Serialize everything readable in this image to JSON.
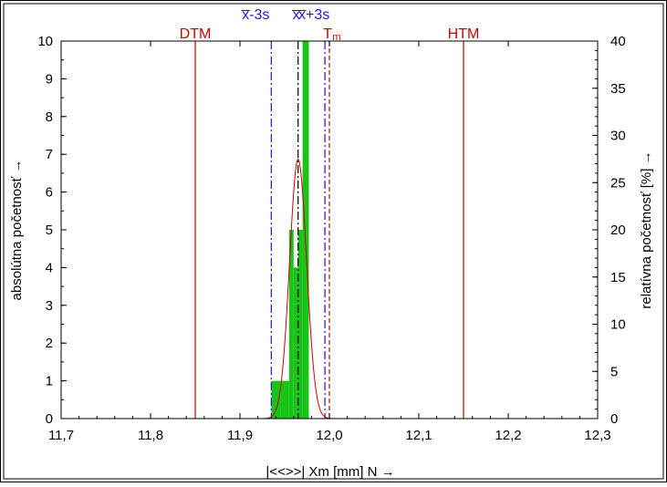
{
  "chart_data": {
    "type": "bar",
    "xlabel": "|<<>>|  Xm [mm]  N →",
    "ylabel_left": "absolútna početnosť →",
    "ylabel_right": "relatívna početnosť  [%] →",
    "xlim": [
      11.7,
      12.3
    ],
    "ylim_left": [
      0,
      10
    ],
    "ylim_right": [
      0,
      40
    ],
    "x_ticks": [
      "11,7",
      "11,8",
      "11,9",
      "12,0",
      "12,1",
      "12,2",
      "12,3"
    ],
    "x_tick_values": [
      11.7,
      11.8,
      11.9,
      12.0,
      12.1,
      12.2,
      12.3
    ],
    "y_left_ticks": [
      "0",
      "1",
      "2",
      "3",
      "4",
      "5",
      "6",
      "7",
      "8",
      "9",
      "10"
    ],
    "y_left_tick_values": [
      0,
      1,
      2,
      3,
      4,
      5,
      6,
      7,
      8,
      9,
      10
    ],
    "y_right_ticks": [
      "0",
      "5",
      "10",
      "15",
      "20",
      "25",
      "30",
      "35",
      "40"
    ],
    "y_right_tick_values": [
      0,
      5,
      10,
      15,
      20,
      25,
      30,
      35,
      40
    ],
    "bins": [
      {
        "x0": 11.935,
        "x1": 11.945,
        "count": 1
      },
      {
        "x0": 11.945,
        "x1": 11.955,
        "count": 1
      },
      {
        "x0": 11.955,
        "x1": 11.96,
        "count": 5
      },
      {
        "x0": 11.96,
        "x1": 11.965,
        "count": 4
      },
      {
        "x0": 11.965,
        "x1": 11.97,
        "count": 5
      },
      {
        "x0": 11.97,
        "x1": 11.977,
        "count": 10
      }
    ],
    "bar_color": "#18c418",
    "normal_curve": {
      "mean": 11.965,
      "sd": 0.0095,
      "peak_percent": 27.5,
      "color": "#cc0000"
    },
    "lines": [
      {
        "label": "DTM",
        "x": 11.85,
        "color": "#cc0000",
        "style": "solid"
      },
      {
        "label": "HTM",
        "x": 12.15,
        "color": "#cc0000",
        "style": "solid"
      },
      {
        "label": "T",
        "sub": "m",
        "x": 12.0,
        "color": "#cc0000",
        "style": "dashed"
      },
      {
        "label": "x̅-3s",
        "x": 11.935,
        "color": "#1a1acc",
        "style": "dashdot"
      },
      {
        "label": "x̅",
        "x": 11.965,
        "color": "#000000",
        "style": "dashdot"
      },
      {
        "label": "x̅+3s",
        "x": 11.995,
        "color": "#1a1acc",
        "style": "dashdot"
      }
    ]
  }
}
